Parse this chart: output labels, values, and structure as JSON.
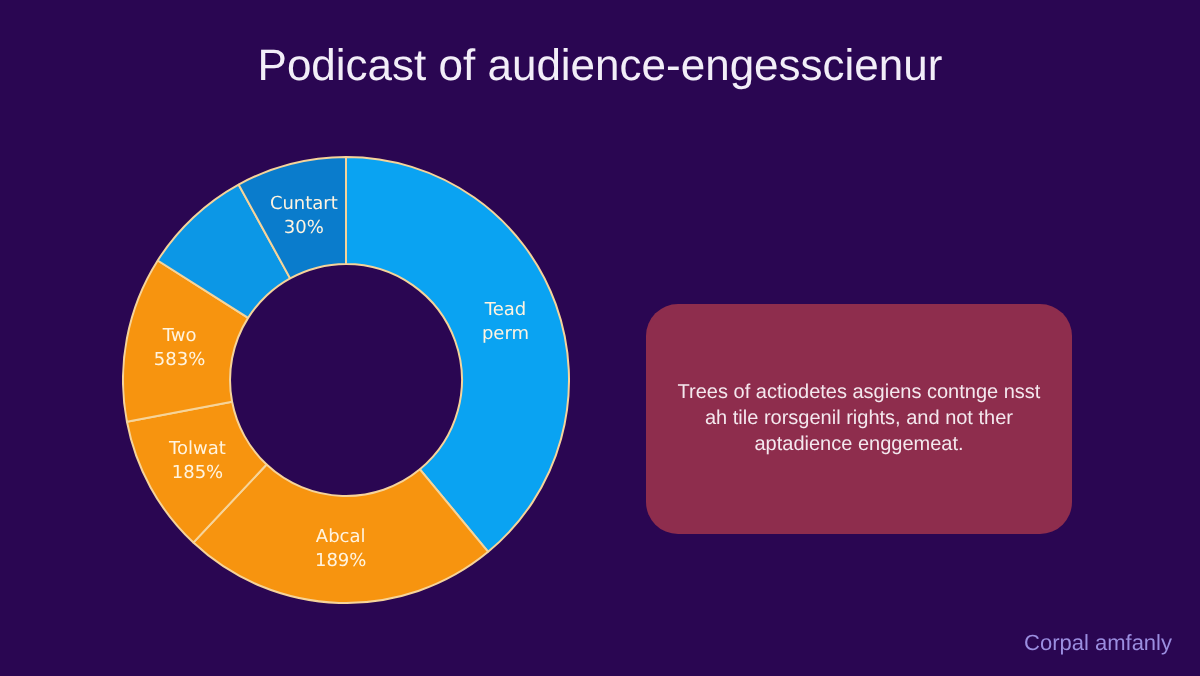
{
  "chart_data": {
    "type": "donut",
    "title": "Podicast of audience-engesscienur",
    "categories": [
      "Tead perm",
      "Abcal 189%",
      "Tolwat 185%",
      "Two 583%",
      null,
      "Cuntart 30%"
    ],
    "values": [
      39,
      23,
      10,
      12,
      8,
      8
    ],
    "colors": [
      "#0aa3f2",
      "#f7940f",
      "#f7940f",
      "#f7940f",
      "#0c97e6",
      "#0a7ccc"
    ],
    "annotations": [
      "Trees of actiodetes asgiens contnge nsst ah tile rorsgenil rights, and not ther aptadience enggemeat.",
      "Corpal amfanly"
    ]
  }
}
